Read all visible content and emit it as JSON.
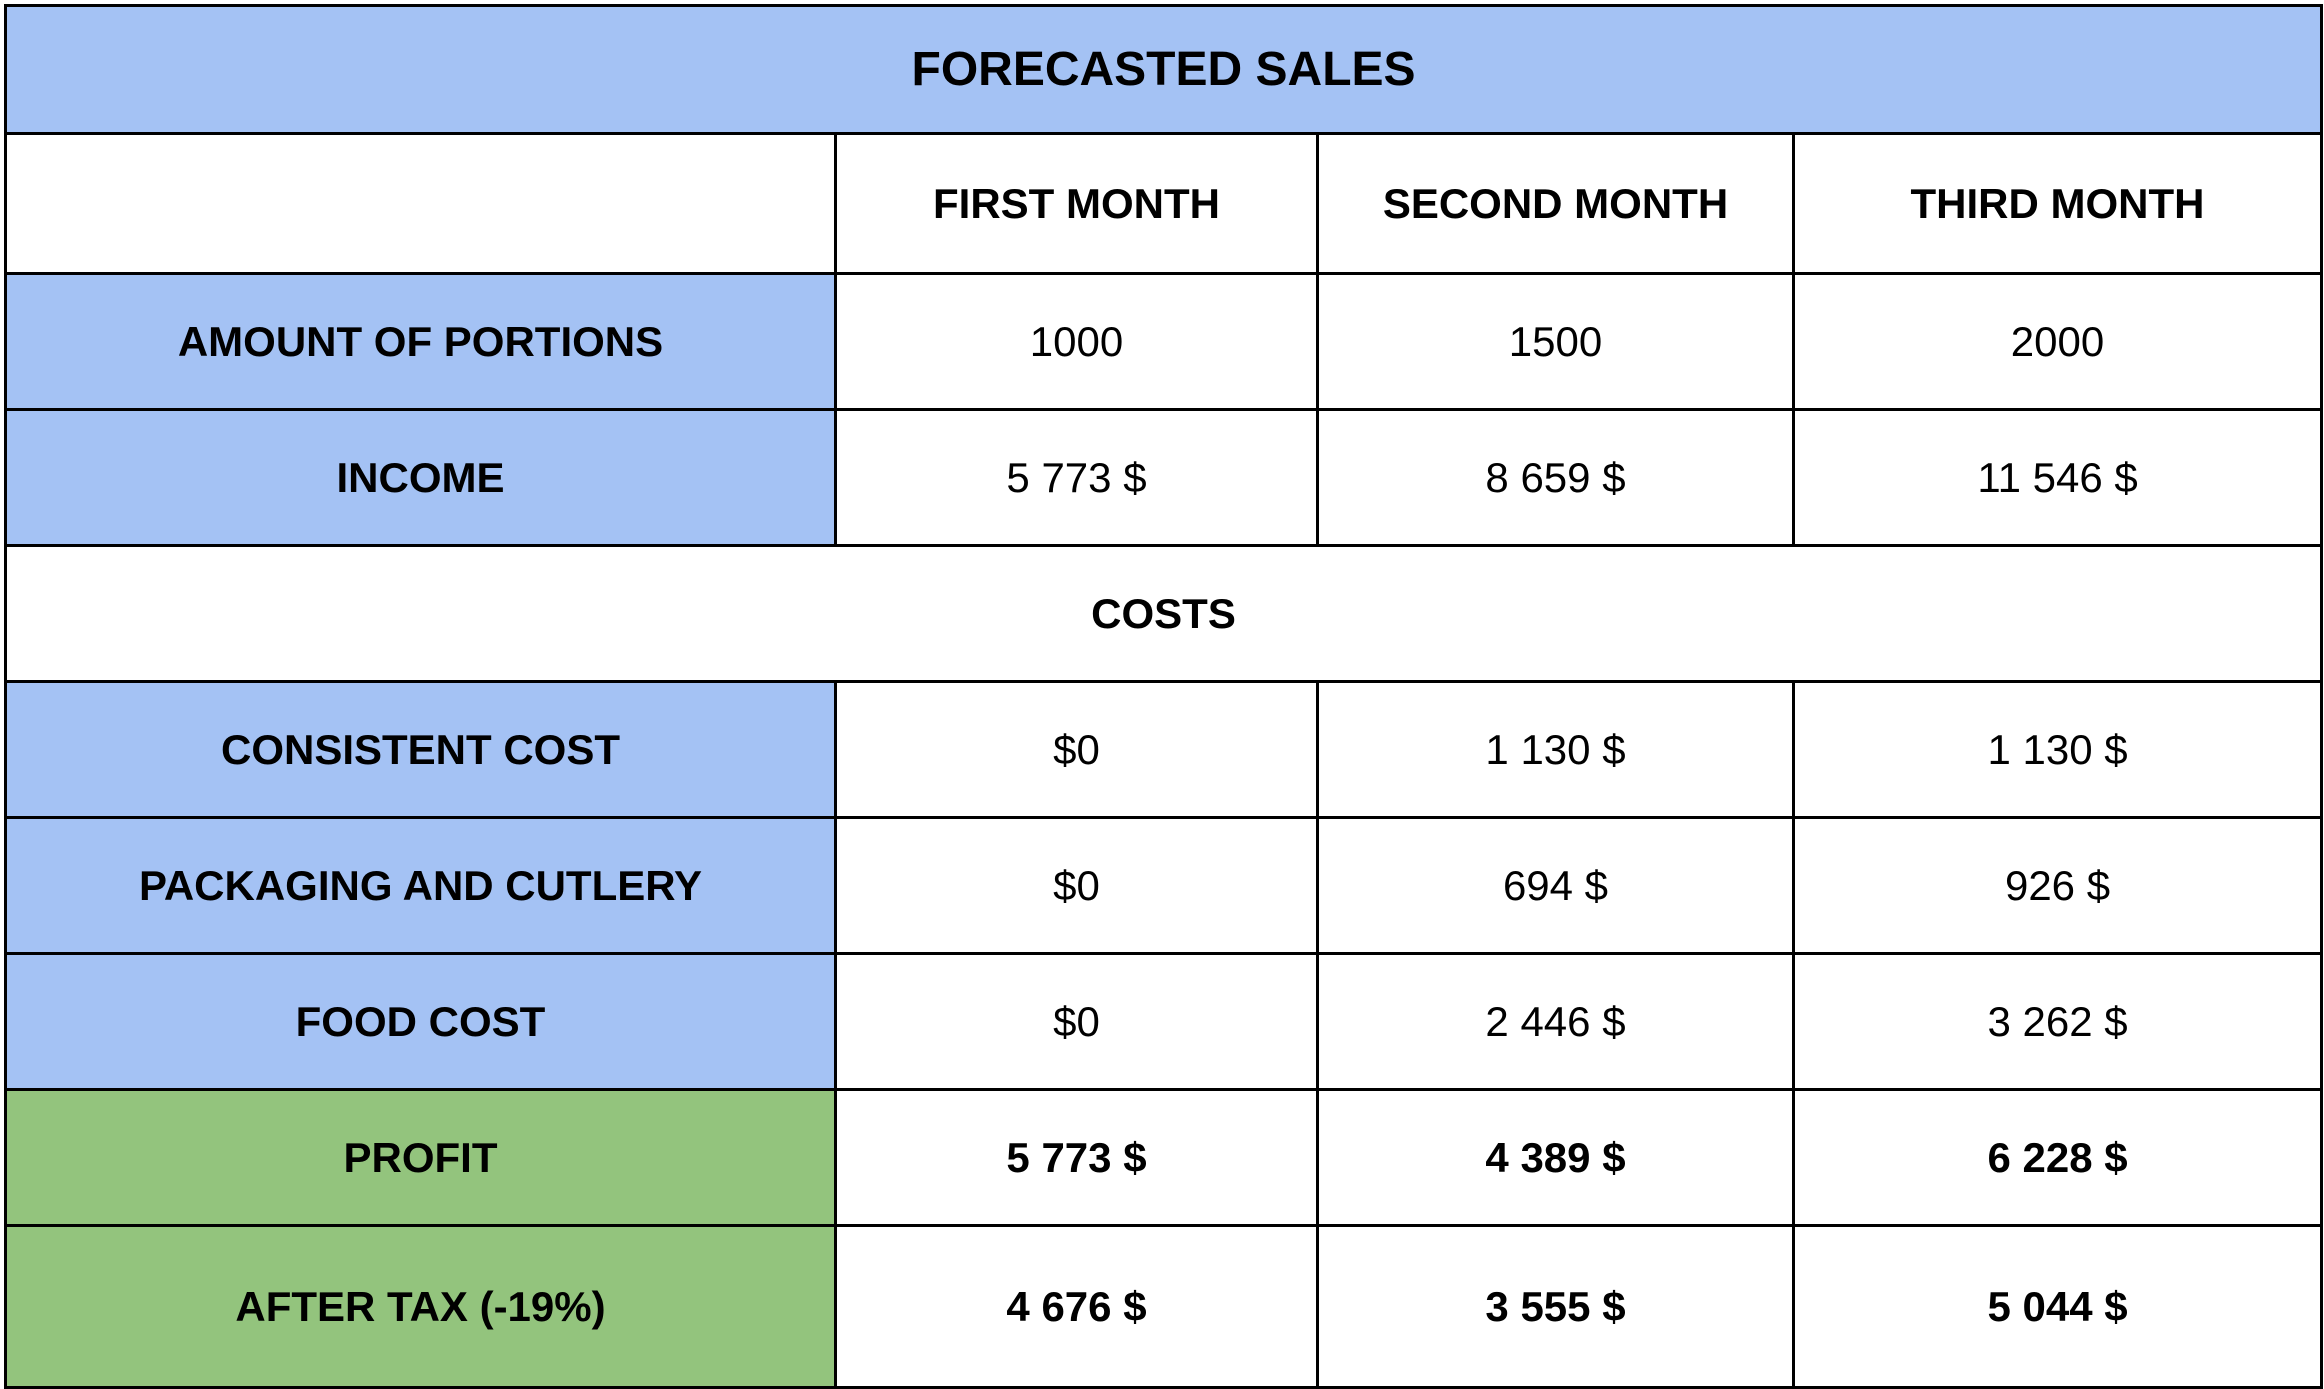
{
  "title": "FORECASTED SALES",
  "columns": [
    "",
    "FIRST MONTH",
    "SECOND MONTH",
    "THIRD MONTH"
  ],
  "rows": {
    "portions": {
      "label": "AMOUNT OF PORTIONS",
      "values": [
        "1000",
        "1500",
        "2000"
      ]
    },
    "income": {
      "label": "INCOME",
      "values": [
        "5 773 $",
        "8 659 $",
        "11 546 $"
      ]
    },
    "costs_header": "COSTS",
    "consistent_cost": {
      "label": "CONSISTENT COST",
      "values": [
        "$0",
        "1 130 $",
        "1 130 $"
      ]
    },
    "packaging": {
      "label": "PACKAGING AND CUTLERY",
      "values": [
        "$0",
        "694 $",
        "926 $"
      ]
    },
    "food_cost": {
      "label": "FOOD COST",
      "values": [
        "$0",
        "2 446 $",
        "3 262 $"
      ]
    },
    "profit": {
      "label": "PROFIT",
      "values": [
        "5 773 $",
        "4 389 $",
        "6 228 $"
      ]
    },
    "after_tax": {
      "label": "AFTER TAX (-19%)",
      "values": [
        "4 676 $",
        "3 555 $",
        "5 044 $"
      ]
    }
  },
  "colors": {
    "label_blue": "#a4c2f4",
    "label_green": "#93c47d",
    "border": "#000000"
  }
}
